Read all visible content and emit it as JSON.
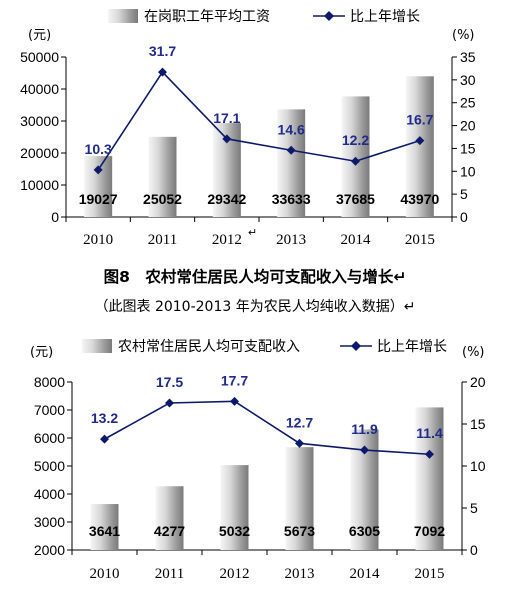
{
  "colors": {
    "line": "#0d1a6b",
    "label": "#1f2a8a",
    "bar_light": "#f4f4f4",
    "bar_dark": "#8a8a8a"
  },
  "chart_data": [
    {
      "type": "bar",
      "title": "",
      "legend": {
        "bar": "在岗职工年平均工资",
        "line": "比上年增长"
      },
      "left_unit": "(元)",
      "right_unit": "(%)",
      "categories": [
        "2010",
        "2011",
        "2012",
        "2013",
        "2014",
        "2015"
      ],
      "category_marks": [
        "",
        "",
        "↵",
        "",
        "",
        ""
      ],
      "left_ticks": [
        "0",
        "10000",
        "20000",
        "30000",
        "40000",
        "50000"
      ],
      "right_ticks": [
        "0",
        "5",
        "10",
        "15",
        "20",
        "25",
        "30",
        "35"
      ],
      "ylim": [
        0,
        50000
      ],
      "y2lim": [
        0,
        35
      ],
      "series": [
        {
          "name": "在岗职工年平均工资",
          "kind": "bar",
          "axis": "left",
          "values": [
            19027,
            25052,
            29342,
            33633,
            37685,
            43970
          ],
          "labels": [
            "19027",
            "25052",
            "29342",
            "33633",
            "37685",
            "43970"
          ]
        },
        {
          "name": "比上年增长",
          "kind": "line",
          "axis": "right",
          "values": [
            10.3,
            31.7,
            17.1,
            14.6,
            12.2,
            16.7
          ],
          "labels": [
            "10.3",
            "31.7",
            "17.1",
            "14.6",
            "12.2",
            "16.7"
          ]
        }
      ]
    },
    {
      "type": "bar",
      "title": "图8　农村常住居民人均可支配收入与增长↵",
      "subtitle": "（此图表 2010-2013 年为农民人均纯收入数据）↵",
      "legend": {
        "bar": "农村常住居民人均可支配收入",
        "line": "比上年增长"
      },
      "left_unit": "(元)",
      "right_unit": "(%)",
      "categories": [
        "2010",
        "2011",
        "2012",
        "2013",
        "2014",
        "2015"
      ],
      "category_marks": [
        "",
        "",
        "",
        "",
        "",
        ""
      ],
      "left_ticks": [
        "2000",
        "3000",
        "4000",
        "5000",
        "6000",
        "7000",
        "8000"
      ],
      "right_ticks": [
        "0",
        "5",
        "10",
        "15",
        "20"
      ],
      "ylim": [
        2000,
        8000
      ],
      "y2lim": [
        0,
        20
      ],
      "series": [
        {
          "name": "农村常住居民人均可支配收入",
          "kind": "bar",
          "axis": "left",
          "values": [
            3641,
            4277,
            5032,
            5673,
            6305,
            7092
          ],
          "labels": [
            "3641",
            "4277",
            "5032",
            "5673",
            "6305",
            "7092"
          ]
        },
        {
          "name": "比上年增长",
          "kind": "line",
          "axis": "right",
          "values": [
            13.2,
            17.5,
            17.7,
            12.7,
            11.9,
            11.4
          ],
          "labels": [
            "13.2",
            "17.5",
            "17.7",
            "12.7",
            "11.9",
            "11.4"
          ]
        }
      ]
    }
  ]
}
